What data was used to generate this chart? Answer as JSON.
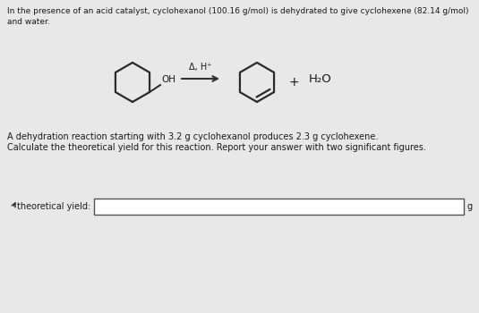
{
  "title_line1": "In the presence of an acid catalyst, cyclohexanol (100.16 g/mol) is dehydrated to give cyclohexene (82.14 g/mol)",
  "title_line2": "and water.",
  "reaction_label": "Δ, H⁺",
  "plus_sign": "+",
  "water_label": "H₂O",
  "oh_label": "OH",
  "description_line1": "A dehydration reaction starting with 3.2 g cyclohexanol produces 2.3 g cyclohexene.",
  "description_line2": "Calculate the theoretical yield for this reaction. Report your answer with two significant figures.",
  "input_label": "theoretical yield:",
  "unit_label": "g",
  "bg_color": "#e8e8e8",
  "panel_color": "#f2f0ec",
  "text_color": "#1a1a1a",
  "box_color": "#ffffff",
  "molecule_color": "#2a2a2a",
  "arrow_color": "#333333"
}
